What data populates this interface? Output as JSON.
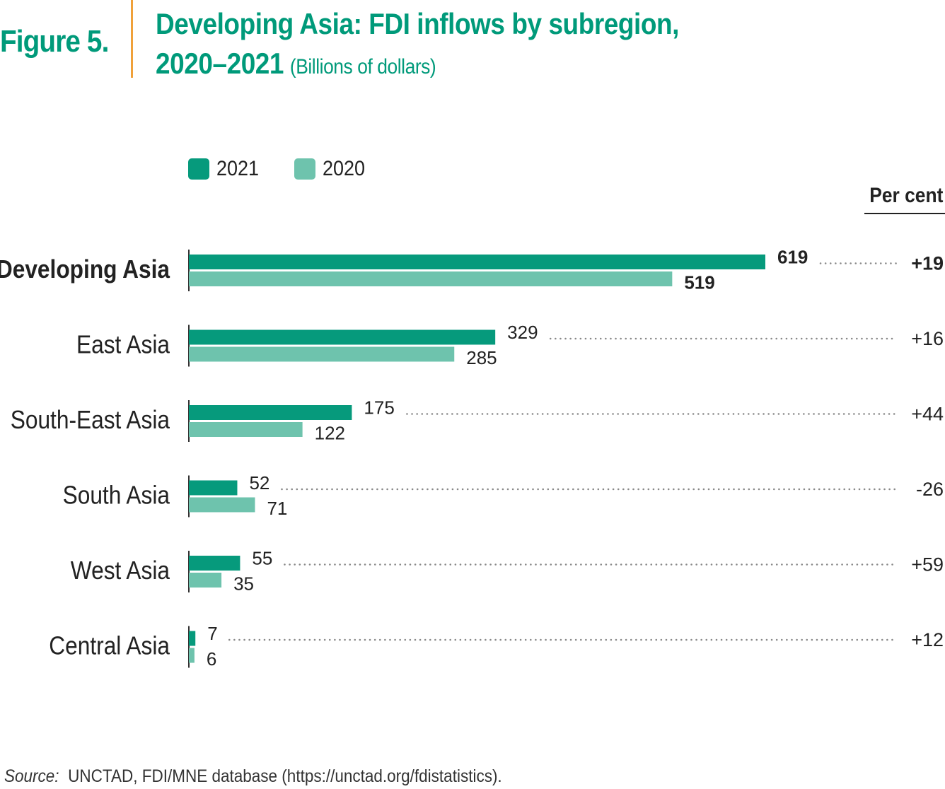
{
  "figure_label": "Figure 5.",
  "title": {
    "line1": "Developing Asia: FDI inflows by subregion,",
    "line2": "2020–2021",
    "unit": "(Billions of dollars)"
  },
  "legend": [
    {
      "label": "2021",
      "color": "#069a7c"
    },
    {
      "label": "2020",
      "color": "#6ec3ad"
    }
  ],
  "percent_header": "Per cent",
  "source": {
    "label": "Source:",
    "text": "UNCTAD, FDI/MNE database (https://unctad.org/fdistatistics)."
  },
  "chart_data": {
    "type": "bar",
    "orientation": "horizontal",
    "categories": [
      "Developing Asia",
      "East Asia",
      "South-East Asia",
      "South Asia",
      "West Asia",
      "Central Asia"
    ],
    "series": [
      {
        "name": "2021",
        "values": [
          619,
          329,
          175,
          52,
          55,
          7
        ]
      },
      {
        "name": "2020",
        "values": [
          519,
          285,
          122,
          71,
          35,
          6
        ]
      }
    ],
    "percent_change": [
      "+19",
      "+16",
      "+44",
      "-26",
      "+59",
      "+12"
    ],
    "xlim": [
      0,
      619
    ],
    "bold_categories": [
      "Developing Asia"
    ],
    "grid": false,
    "legend_position": "top-left"
  }
}
